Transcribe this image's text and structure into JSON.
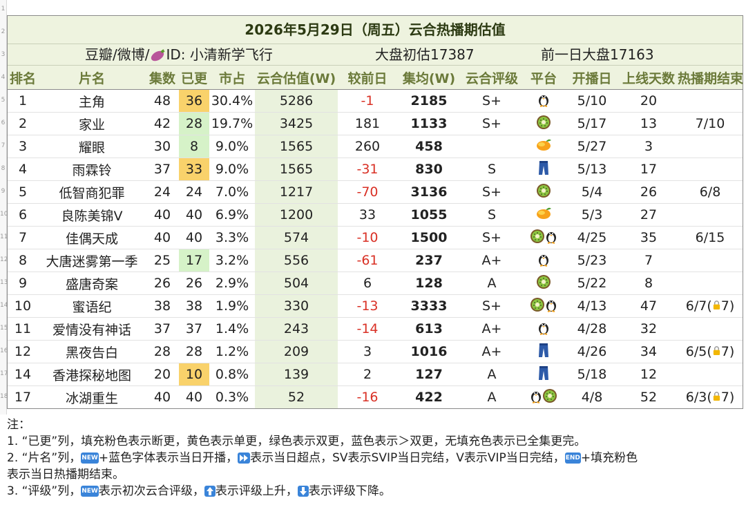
{
  "row_gutter": [
    "1",
    "2",
    "3",
    "4",
    "5",
    "6",
    "7",
    "8",
    "9",
    "10",
    "11",
    "12",
    "13",
    "14",
    "15",
    "16",
    "17",
    "18"
  ],
  "title": "2026年5月29日（周五）云合热播期估值",
  "subheader": {
    "source": "豆瓣/微博/",
    "id": "ID: 小清新学飞行",
    "market_est": "大盘初估17387",
    "prev_market": "前一日大盘17163"
  },
  "columns": [
    "排名",
    "片名",
    "集数",
    "已更",
    "市占",
    "云合估值(W)",
    "较前日",
    "集均(W)",
    "云合评级",
    "平台",
    "开播日",
    "上线天数",
    "热播期结束"
  ],
  "colors": {
    "header_bg": "#eef3df",
    "header_text": "#6b7a3a",
    "yellow": "#f9d26b",
    "green": "#d6f2c8",
    "value_bg": "#eaf2dd",
    "negative": "#d93025"
  },
  "rows": [
    {
      "rank": "1",
      "name": "主角",
      "episodes": "48",
      "updated": "36",
      "updated_fill": "yellow",
      "share": "30.4%",
      "value": "5286",
      "change": "-1",
      "avg": "2185",
      "grade": "S+",
      "platforms": [
        "penguin-icon"
      ],
      "start": "5/10",
      "days": "20",
      "end": ""
    },
    {
      "rank": "2",
      "name": "家业",
      "episodes": "42",
      "updated": "28",
      "updated_fill": "green",
      "share": "19.7%",
      "value": "3425",
      "change": "181",
      "avg": "1133",
      "grade": "S+",
      "platforms": [
        "kiwi-icon"
      ],
      "start": "5/17",
      "days": "13",
      "end": "7/10"
    },
    {
      "rank": "3",
      "name": "耀眼",
      "episodes": "30",
      "updated": "8",
      "updated_fill": "green",
      "share": "9.0%",
      "value": "1565",
      "change": "260",
      "avg": "458",
      "grade": "",
      "platforms": [
        "mango-icon"
      ],
      "start": "5/27",
      "days": "3",
      "end": ""
    },
    {
      "rank": "4",
      "name": "雨霖铃",
      "episodes": "37",
      "updated": "33",
      "updated_fill": "yellow",
      "share": "9.0%",
      "value": "1565",
      "change": "-31",
      "avg": "830",
      "grade": "S",
      "platforms": [
        "jeans-icon"
      ],
      "start": "5/13",
      "days": "17",
      "end": ""
    },
    {
      "rank": "5",
      "name": "低智商犯罪",
      "episodes": "24",
      "updated": "24",
      "updated_fill": "",
      "share": "7.0%",
      "value": "1217",
      "change": "-70",
      "avg": "3136",
      "grade": "S+",
      "platforms": [
        "kiwi-icon"
      ],
      "start": "5/4",
      "days": "26",
      "end": "6/8"
    },
    {
      "rank": "6",
      "name": "良陈美锦V",
      "episodes": "40",
      "updated": "40",
      "updated_fill": "",
      "share": "6.9%",
      "value": "1200",
      "change": "33",
      "avg": "1055",
      "grade": "S",
      "platforms": [
        "mango-icon"
      ],
      "start": "5/3",
      "days": "27",
      "end": ""
    },
    {
      "rank": "7",
      "name": "佳偶天成",
      "episodes": "40",
      "updated": "40",
      "updated_fill": "",
      "share": "3.3%",
      "value": "574",
      "change": "-10",
      "avg": "1500",
      "grade": "S+",
      "platforms": [
        "kiwi-icon",
        "penguin-icon"
      ],
      "start": "4/25",
      "days": "35",
      "end": "6/15"
    },
    {
      "rank": "8",
      "name": "大唐迷雾第一季",
      "episodes": "25",
      "updated": "17",
      "updated_fill": "green",
      "share": "3.2%",
      "value": "556",
      "change": "-61",
      "avg": "237",
      "grade": "A+",
      "platforms": [
        "penguin-icon"
      ],
      "start": "5/23",
      "days": "7",
      "end": ""
    },
    {
      "rank": "9",
      "name": "盛唐奇案",
      "episodes": "26",
      "updated": "26",
      "updated_fill": "",
      "share": "2.9%",
      "value": "504",
      "change": "6",
      "avg": "128",
      "grade": "A",
      "platforms": [
        "kiwi-icon"
      ],
      "start": "5/22",
      "days": "8",
      "end": ""
    },
    {
      "rank": "10",
      "name": "蜜语纪",
      "episodes": "38",
      "updated": "38",
      "updated_fill": "",
      "share": "1.9%",
      "value": "330",
      "change": "-13",
      "avg": "3333",
      "grade": "S+",
      "platforms": [
        "kiwi-icon",
        "penguin-icon"
      ],
      "start": "4/13",
      "days": "47",
      "end": "6/7(",
      "end_suffix": "7)"
    },
    {
      "rank": "11",
      "name": "爱情没有神话",
      "episodes": "37",
      "updated": "37",
      "updated_fill": "",
      "share": "1.4%",
      "value": "243",
      "change": "-14",
      "avg": "613",
      "grade": "A+",
      "platforms": [
        "penguin-icon"
      ],
      "start": "4/28",
      "days": "32",
      "end": ""
    },
    {
      "rank": "12",
      "name": "黑夜告白",
      "episodes": "28",
      "updated": "28",
      "updated_fill": "",
      "share": "1.2%",
      "value": "209",
      "change": "3",
      "avg": "1016",
      "grade": "A+",
      "platforms": [
        "jeans-icon"
      ],
      "start": "4/26",
      "days": "34",
      "end": "6/5(",
      "end_suffix": "7)"
    },
    {
      "rank": "14",
      "name": "香港探秘地图",
      "episodes": "20",
      "updated": "10",
      "updated_fill": "yellow",
      "share": "0.8%",
      "value": "139",
      "change": "2",
      "avg": "127",
      "grade": "A",
      "platforms": [
        "jeans-icon"
      ],
      "start": "5/18",
      "days": "12",
      "end": ""
    },
    {
      "rank": "17",
      "name": "冰湖重生",
      "episodes": "40",
      "updated": "40",
      "updated_fill": "",
      "share": "0.3%",
      "value": "52",
      "change": "-16",
      "avg": "422",
      "grade": "A",
      "platforms": [
        "penguin-icon",
        "kiwi-icon"
      ],
      "start": "4/8",
      "days": "52",
      "end": "6/3(",
      "end_suffix": "7)"
    }
  ],
  "notes": {
    "heading": "注：",
    "n1": "1. “已更”列，填充粉色表示断更，黄色表示单更，绿色表示双更，蓝色表示＞双更，无填充色表示已全集更完。",
    "n2a": "2. “片名”列，",
    "n2_new_badge": "NEW",
    "n2b": "+蓝色字体表示当日开播，",
    "n2c": "表示当日超点，SV表示SVIP当日完结，V表示VIP当日完结，",
    "n2_end_badge": "END",
    "n2d": "+填充粉色",
    "n2e": "表示当日热播期结束。",
    "n3a": "3. “评级”列，",
    "n3_new_badge": "NEW",
    "n3b": "表示初次云合评级，",
    "n3c": "表示评级上升，",
    "n3d": "表示评级下降。"
  }
}
